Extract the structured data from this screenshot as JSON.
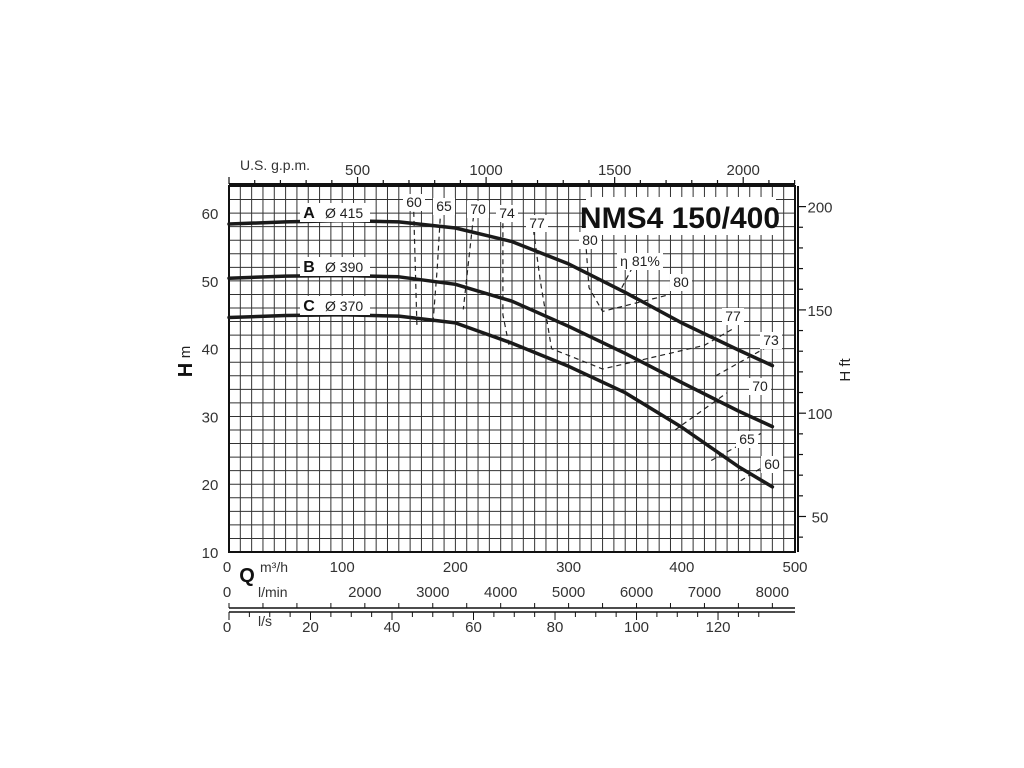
{
  "chart_data": {
    "type": "line",
    "title": "NMS4 150/400",
    "x_axis": {
      "label": "Q",
      "unit": "m³/h",
      "range": [
        0,
        500
      ],
      "ticks": [
        0,
        100,
        200,
        300,
        400,
        500
      ]
    },
    "secondary_x_axes": [
      {
        "unit": "U.S. g.p.m.",
        "position": "top",
        "ticks": [
          500,
          1000,
          1500,
          2000
        ]
      },
      {
        "unit": "l/min",
        "position": "bottom",
        "ticks": [
          0,
          2000,
          3000,
          4000,
          5000,
          6000,
          7000,
          8000
        ]
      },
      {
        "unit": "l/s",
        "position": "bottom",
        "ticks": [
          0,
          20,
          40,
          60,
          80,
          100,
          120
        ]
      }
    ],
    "y_axis": {
      "label": "H",
      "unit": "m",
      "range": [
        10,
        64
      ],
      "ticks": [
        10,
        20,
        30,
        40,
        50,
        60
      ]
    },
    "secondary_y_axis": {
      "label": "H ft",
      "ticks": [
        50,
        100,
        150,
        200
      ]
    },
    "grid": true,
    "series": [
      {
        "name": "A",
        "diameter_label": "Ø 415",
        "x": [
          0,
          50,
          100,
          150,
          200,
          250,
          300,
          350,
          400,
          450,
          480
        ],
        "y": [
          58.4,
          58.7,
          58.9,
          58.7,
          57.8,
          55.8,
          52.5,
          48.3,
          43.8,
          39.8,
          37.5
        ]
      },
      {
        "name": "B",
        "diameter_label": "Ø 390",
        "x": [
          0,
          50,
          100,
          150,
          200,
          250,
          300,
          350,
          400,
          450,
          480
        ],
        "y": [
          50.4,
          50.7,
          50.8,
          50.6,
          49.5,
          47.0,
          43.3,
          39.3,
          35.0,
          30.8,
          28.5
        ]
      },
      {
        "name": "C",
        "diameter_label": "Ø 370",
        "x": [
          0,
          50,
          100,
          150,
          200,
          250,
          300,
          350,
          400,
          450,
          480
        ],
        "y": [
          44.6,
          44.9,
          45.0,
          44.8,
          43.8,
          40.8,
          37.4,
          33.5,
          28.4,
          22.6,
          19.6
        ]
      }
    ],
    "efficiency_curves": [
      {
        "label": "60",
        "x": [
          163,
          166
        ],
        "y": [
          61.5,
          43.5
        ]
      },
      {
        "label": "60",
        "x": [
          452,
          476
        ],
        "y": [
          20.5,
          23.0
        ]
      },
      {
        "label": "65",
        "x": [
          187,
          184,
          180
        ],
        "y": [
          60.5,
          52.0,
          43.5
        ]
      },
      {
        "label": "65",
        "x": [
          426,
          470
        ],
        "y": [
          23.5,
          27.5
        ]
      },
      {
        "label": "70",
        "x": [
          216,
          211,
          207
        ],
        "y": [
          59.5,
          52.0,
          45.8
        ]
      },
      {
        "label": "70",
        "x": [
          394,
          440
        ],
        "y": [
          28.0,
          33.5
        ]
      },
      {
        "label": "74",
        "x": [
          242,
          242,
          248
        ],
        "y": [
          58.5,
          45.0,
          40.0
        ]
      },
      {
        "label": "73",
        "x": [
          430,
          478
        ],
        "y": [
          36.0,
          40.5
        ]
      },
      {
        "label": "77",
        "x": [
          269,
          275,
          285,
          330,
          420,
          446
        ],
        "y": [
          57.5,
          50.0,
          40.0,
          37.0,
          40.5,
          43.0
        ]
      },
      {
        "label": "80",
        "x": [
          315,
          318,
          330,
          390
        ],
        "y": [
          56.0,
          49.0,
          45.5,
          48.0
        ]
      },
      {
        "label": "η 81%",
        "x": [
          347,
          358
        ],
        "y": [
          49.0,
          52.5
        ]
      }
    ],
    "curve_labels": [
      {
        "letter": "A",
        "text": "Ø 415"
      },
      {
        "letter": "B",
        "text": "Ø 390"
      },
      {
        "letter": "C",
        "text": "Ø 370"
      }
    ],
    "efficiency_labels": [
      "60",
      "65",
      "70",
      "74",
      "77",
      "80",
      "η 81%",
      "80",
      "77",
      "73",
      "70",
      "65",
      "60"
    ]
  }
}
